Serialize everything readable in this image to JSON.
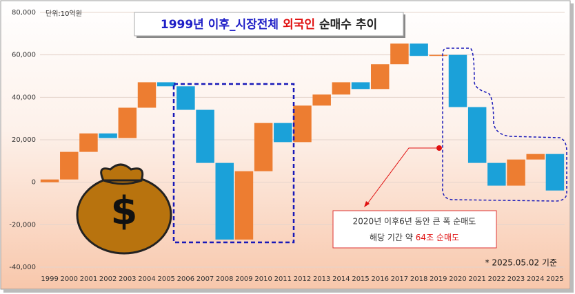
{
  "chart_data": {
    "type": "waterfall",
    "title_parts": [
      "1999년 이후_시장전체",
      "외국인",
      "순매수 추이"
    ],
    "unit_label": "단위:10억원",
    "categories": [
      "1999",
      "2000",
      "2001",
      "2002",
      "2003",
      "2004",
      "2005",
      "2006",
      "2007",
      "2008",
      "2009",
      "2010",
      "2011",
      "2012",
      "2013",
      "2014",
      "2015",
      "2016",
      "2017",
      "2018",
      "2019",
      "2020",
      "2021",
      "2022",
      "2023",
      "2024",
      "2025"
    ],
    "values": [
      1300,
      13000,
      8700,
      -2200,
      14300,
      12000,
      -1900,
      -11100,
      -25000,
      -36100,
      32200,
      22700,
      -9000,
      17200,
      5200,
      5800,
      -3200,
      11700,
      9700,
      -5800,
      500,
      -24600,
      -26300,
      -10700,
      12300,
      2600,
      -17200
    ],
    "increase_color": "#ed7d31",
    "decrease_color": "#1ba1d9",
    "ylim": [
      -40000,
      80000
    ],
    "yticks": [
      {
        "value": -40000,
        "label": "-40,000"
      },
      {
        "value": -20000,
        "label": "-20,000"
      },
      0,
      {
        "value": 20000,
        "label": "20,000"
      },
      {
        "value": 40000,
        "label": "40,000"
      },
      {
        "value": 60000,
        "label": "60,000"
      },
      {
        "value": 80000,
        "label": "80,000"
      }
    ],
    "annotation": {
      "line1": "2020년 이후6년 동안 큰 폭 순매도",
      "line2_prefix": "해당 기간 약",
      "line2_highlight": "64조 순매도"
    },
    "footnote": "* 2025.05.02 기준"
  }
}
